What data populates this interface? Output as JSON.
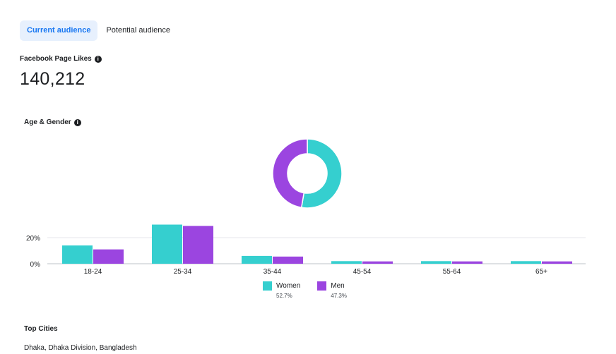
{
  "tabs": [
    {
      "label": "Current audience",
      "active": true
    },
    {
      "label": "Potential audience",
      "active": false
    }
  ],
  "page_likes": {
    "label": "Facebook Page Likes",
    "value": "140,212"
  },
  "age_gender": {
    "title": "Age & Gender"
  },
  "info_icon": "info-icon",
  "colors": {
    "women": "#35cfcf",
    "men": "#9b45e0",
    "tab_active_bg": "#e7f0fd",
    "tab_active_text": "#1877f2"
  },
  "legend": [
    {
      "name": "Women",
      "percent": "52.7%"
    },
    {
      "name": "Men",
      "percent": "47.3%"
    }
  ],
  "chart_data": [
    {
      "type": "pie",
      "donut": true,
      "slices": [
        {
          "name": "Women",
          "value": 52.7
        },
        {
          "name": "Men",
          "value": 47.3
        }
      ]
    },
    {
      "type": "bar",
      "categories": [
        "18-24",
        "25-34",
        "35-44",
        "45-54",
        "55-64",
        "65+"
      ],
      "series": [
        {
          "name": "Women",
          "values": [
            14,
            30,
            6,
            2,
            2,
            2
          ]
        },
        {
          "name": "Men",
          "values": [
            11,
            29,
            5.5,
            1.8,
            1.8,
            1.8
          ]
        }
      ],
      "y_ticks": [
        "0%",
        "20%"
      ],
      "ylim": [
        0,
        30
      ],
      "grid": true
    }
  ],
  "top_cities": {
    "title": "Top Cities",
    "items": [
      "Dhaka, Dhaka Division, Bangladesh"
    ]
  }
}
